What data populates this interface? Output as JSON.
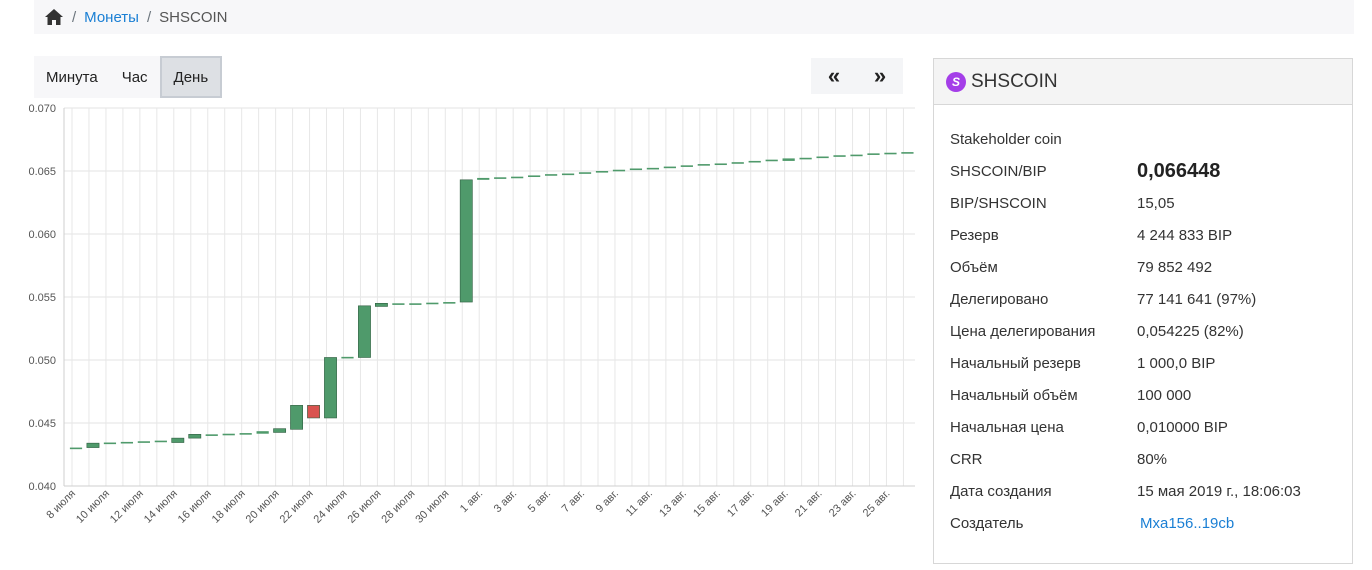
{
  "breadcrumb": {
    "home_icon": "home-icon",
    "coins": "Монеты",
    "current": "SHSCOIN"
  },
  "periods": {
    "minute": "Минута",
    "hour": "Час",
    "day": "День",
    "active": "День"
  },
  "nav": {
    "prev": "«",
    "next": "»"
  },
  "coin": {
    "badge": "S",
    "symbol": "SHSCOIN",
    "name": "Stakeholder coin",
    "badge_color": "#a43ee8",
    "rows": [
      {
        "label": "SHSCOIN/BIP",
        "value": "0,066448"
      },
      {
        "label": "BIP/SHSCOIN",
        "value": "15,05"
      },
      {
        "label": "Резерв",
        "value": "4 244 833 BIP"
      },
      {
        "label": "Объём",
        "value": "79 852 492"
      },
      {
        "label": "Делегировано",
        "value": "77 141 641 (97%)"
      },
      {
        "label": "Цена делегирования",
        "value": "0,054225 (82%)"
      },
      {
        "label": "Начальный резерв",
        "value": "1 000,0 BIP"
      },
      {
        "label": "Начальный объём",
        "value": "100 000"
      },
      {
        "label": "Начальная цена",
        "value": "0,010000 BIP"
      },
      {
        "label": "CRR",
        "value": "80%"
      },
      {
        "label": "Дата создания",
        "value": "15 мая 2019 г., 18:06:03"
      },
      {
        "label": "Создатель",
        "value": "Mxa156..19cb"
      }
    ]
  },
  "chart_data": {
    "type": "candlestick",
    "ylim": [
      0.04,
      0.07
    ],
    "yticks": [
      "0.040",
      "0.045",
      "0.050",
      "0.055",
      "0.060",
      "0.065",
      "0.070"
    ],
    "xtick_labels": [
      "8 июля",
      "10 июля",
      "12 июля",
      "14 июля",
      "16 июля",
      "18 июля",
      "20 июля",
      "22 июля",
      "24 июля",
      "26 июля",
      "28 июля",
      "30 июля",
      "1 авг.",
      "3 авг.",
      "5 авг.",
      "7 авг.",
      "9 авг.",
      "11 авг.",
      "13 авг.",
      "15 авг.",
      "17 авг.",
      "19 авг.",
      "21 авг.",
      "23 авг.",
      "25 авг."
    ],
    "grid": true,
    "up_color": "#4f9a6b",
    "down_color": "#d9534f",
    "candles": [
      {
        "date": "8 июля",
        "open": 0.043,
        "close": 0.04305
      },
      {
        "date": "9 июля",
        "open": 0.04305,
        "close": 0.0434
      },
      {
        "date": "10 июля",
        "open": 0.0434,
        "close": 0.04345
      },
      {
        "date": "11 июля",
        "open": 0.04345,
        "close": 0.0435
      },
      {
        "date": "12 июля",
        "open": 0.0435,
        "close": 0.04355
      },
      {
        "date": "13 июля",
        "open": 0.04355,
        "close": 0.0436
      },
      {
        "date": "14 июля",
        "open": 0.04345,
        "close": 0.0438
      },
      {
        "date": "15 июля",
        "open": 0.0438,
        "close": 0.0441
      },
      {
        "date": "16 июля",
        "open": 0.04405,
        "close": 0.0441
      },
      {
        "date": "17 июля",
        "open": 0.0441,
        "close": 0.04415
      },
      {
        "date": "18 июля",
        "open": 0.0441,
        "close": 0.0442
      },
      {
        "date": "19 июля",
        "open": 0.04415,
        "close": 0.04435
      },
      {
        "date": "20 июля",
        "open": 0.04425,
        "close": 0.04455
      },
      {
        "date": "21 июля",
        "open": 0.0445,
        "close": 0.0464
      },
      {
        "date": "22 июля",
        "open": 0.0464,
        "close": 0.0454
      },
      {
        "date": "23 июля",
        "open": 0.0454,
        "close": 0.0502
      },
      {
        "date": "24 июля",
        "open": 0.0502,
        "close": 0.05025
      },
      {
        "date": "25 июля",
        "open": 0.0502,
        "close": 0.0543
      },
      {
        "date": "26 июля",
        "open": 0.05425,
        "close": 0.0545
      },
      {
        "date": "27 июля",
        "open": 0.05445,
        "close": 0.0545
      },
      {
        "date": "28 июля",
        "open": 0.05445,
        "close": 0.0545
      },
      {
        "date": "29 июля",
        "open": 0.0545,
        "close": 0.05455
      },
      {
        "date": "30 июля",
        "open": 0.05455,
        "close": 0.0546
      },
      {
        "date": "31 июля",
        "open": 0.0546,
        "close": 0.0643
      },
      {
        "date": "1 авг.",
        "open": 0.0643,
        "close": 0.06445
      },
      {
        "date": "2 авг.",
        "open": 0.06445,
        "close": 0.0645
      },
      {
        "date": "3 авг.",
        "open": 0.0645,
        "close": 0.06455
      },
      {
        "date": "4 авг.",
        "open": 0.06455,
        "close": 0.06465
      },
      {
        "date": "5 авг.",
        "open": 0.06465,
        "close": 0.06475
      },
      {
        "date": "6 авг.",
        "open": 0.06475,
        "close": 0.0648
      },
      {
        "date": "7 авг.",
        "open": 0.0648,
        "close": 0.0649
      },
      {
        "date": "8 авг.",
        "open": 0.0649,
        "close": 0.065
      },
      {
        "date": "9 авг.",
        "open": 0.065,
        "close": 0.0651
      },
      {
        "date": "10 авг.",
        "open": 0.0651,
        "close": 0.0652
      },
      {
        "date": "11 авг.",
        "open": 0.0652,
        "close": 0.06525
      },
      {
        "date": "12 авг.",
        "open": 0.06525,
        "close": 0.06535
      },
      {
        "date": "13 авг.",
        "open": 0.06535,
        "close": 0.06545
      },
      {
        "date": "14 авг.",
        "open": 0.06545,
        "close": 0.06555
      },
      {
        "date": "15 авг.",
        "open": 0.06555,
        "close": 0.0656
      },
      {
        "date": "16 авг.",
        "open": 0.0656,
        "close": 0.0657
      },
      {
        "date": "17 авг.",
        "open": 0.0657,
        "close": 0.0658
      },
      {
        "date": "18 авг.",
        "open": 0.0658,
        "close": 0.0659
      },
      {
        "date": "19 авг.",
        "open": 0.0658,
        "close": 0.066
      },
      {
        "date": "20 авг.",
        "open": 0.066,
        "close": 0.06605
      },
      {
        "date": "21 авг.",
        "open": 0.06605,
        "close": 0.06615
      },
      {
        "date": "22 авг.",
        "open": 0.06615,
        "close": 0.06625
      },
      {
        "date": "23 авг.",
        "open": 0.06625,
        "close": 0.0663
      },
      {
        "date": "24 авг.",
        "open": 0.0663,
        "close": 0.0664
      },
      {
        "date": "25 авг.",
        "open": 0.0664,
        "close": 0.06645
      },
      {
        "date": "26 авг.",
        "open": 0.06645,
        "close": 0.0665
      }
    ]
  }
}
